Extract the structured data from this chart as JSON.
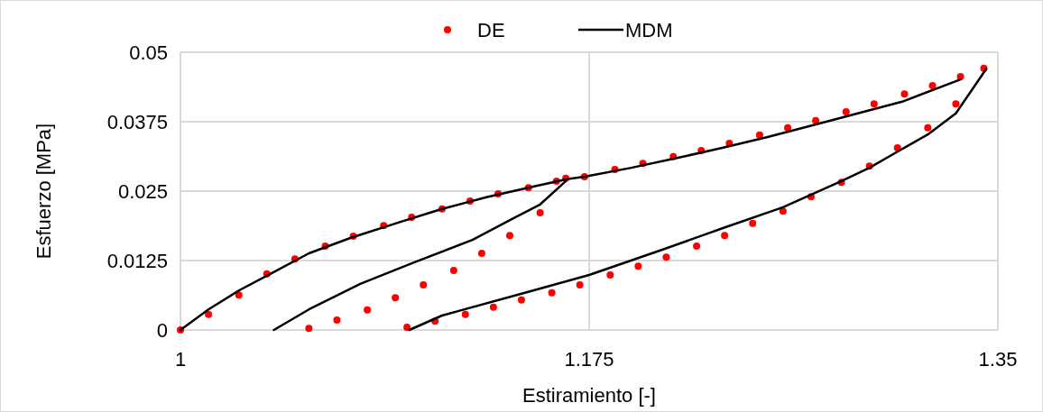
{
  "chart_data": {
    "type": "scatter",
    "xlabel": "Estiramiento [-]",
    "ylabel": "Esfuerzo [MPa]",
    "xlim": [
      1,
      1.35
    ],
    "xticks": [
      1,
      1.175,
      1.35
    ],
    "ylim": [
      0,
      0.05
    ],
    "yticks": [
      0,
      0.0125,
      0.025,
      0.0375,
      0.05
    ],
    "grid": true,
    "legend": "top",
    "series": [
      {
        "name": "DE",
        "color": "#ff0000",
        "marker": "circle",
        "x": [
          1.0,
          1.012,
          1.025,
          1.037,
          1.049,
          1.062,
          1.074,
          1.087,
          1.099,
          1.112,
          1.124,
          1.136,
          1.149,
          1.161,
          1.165,
          1.173,
          1.186,
          1.198,
          1.211,
          1.223,
          1.235,
          1.248,
          1.26,
          1.272,
          1.285,
          1.297,
          1.31,
          1.322,
          1.334,
          1.344,
          1.332,
          1.32,
          1.307,
          1.295,
          1.283,
          1.27,
          1.258,
          1.245,
          1.233,
          1.221,
          1.208,
          1.196,
          1.184,
          1.171,
          1.159,
          1.146,
          1.134,
          1.122,
          1.109,
          1.097,
          1.055,
          1.067,
          1.08,
          1.092,
          1.104,
          1.117,
          1.129,
          1.141,
          1.154
        ],
        "values": [
          0,
          0.0028,
          0.0063,
          0.0101,
          0.0128,
          0.0151,
          0.0169,
          0.0188,
          0.0203,
          0.0218,
          0.0232,
          0.0245,
          0.0256,
          0.0268,
          0.0273,
          0.0276,
          0.0289,
          0.03,
          0.0312,
          0.0323,
          0.0336,
          0.0351,
          0.0364,
          0.0377,
          0.0393,
          0.0407,
          0.0425,
          0.044,
          0.0456,
          0.0471,
          0.0407,
          0.0364,
          0.0328,
          0.0295,
          0.0266,
          0.024,
          0.0214,
          0.0192,
          0.017,
          0.0151,
          0.0131,
          0.0115,
          0.0099,
          0.0081,
          0.0067,
          0.0054,
          0.0041,
          0.0028,
          0.0016,
          0.0005,
          0.0003,
          0.0018,
          0.0036,
          0.0058,
          0.0081,
          0.0107,
          0.0138,
          0.017,
          0.0211
        ]
      },
      {
        "name": "MDM",
        "type": "line",
        "color": "#000000",
        "marker": "none",
        "line_style": "solid",
        "x": [
          1.0,
          1.012,
          1.025,
          1.039,
          1.055,
          1.073,
          1.093,
          1.112,
          1.131,
          1.151,
          1.166,
          1.173,
          1.193,
          1.213,
          1.232,
          1.251,
          1.271,
          1.29,
          1.309,
          1.334,
          null,
          1.04,
          1.055,
          1.077,
          1.099,
          1.125,
          1.142,
          1.154,
          1.165,
          null,
          1.345,
          1.332,
          1.32,
          1.307,
          1.295,
          1.283,
          1.258,
          1.232,
          1.206,
          1.175,
          1.151,
          1.112,
          1.098
        ],
        "values": [
          0,
          0.0037,
          0.0071,
          0.0102,
          0.0138,
          0.0166,
          0.0193,
          0.0218,
          0.0239,
          0.0258,
          0.0272,
          0.0276,
          0.0292,
          0.031,
          0.0328,
          0.0347,
          0.0369,
          0.039,
          0.0411,
          0.0451,
          null,
          0,
          0.0037,
          0.0083,
          0.012,
          0.0162,
          0.02,
          0.0226,
          0.0268,
          null,
          0.047,
          0.039,
          0.0352,
          0.0321,
          0.0292,
          0.0268,
          0.0221,
          0.0183,
          0.0144,
          0.0099,
          0.0071,
          0.0026,
          0
        ]
      }
    ]
  }
}
